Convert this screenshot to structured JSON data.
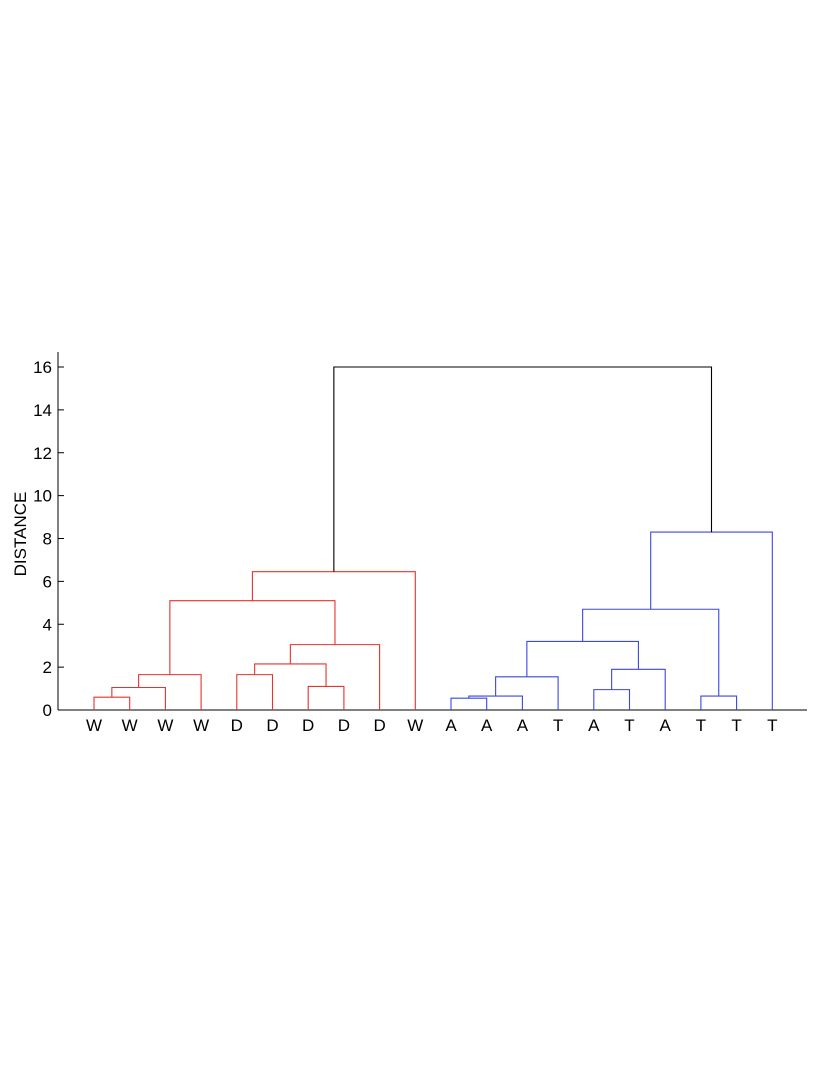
{
  "chart_data": {
    "type": "dendrogram",
    "title": "",
    "xlabel": "",
    "ylabel": "DISTANCE",
    "ylim": [
      0,
      16.8
    ],
    "yticks": [
      0,
      2,
      4,
      6,
      8,
      10,
      12,
      14,
      16
    ],
    "grid": false,
    "leaves": [
      "W",
      "W",
      "W",
      "W",
      "D",
      "D",
      "D",
      "D",
      "D",
      "W",
      "A",
      "A",
      "A",
      "T",
      "A",
      "T",
      "A",
      "T",
      "T",
      "T"
    ],
    "colors": {
      "cluster_1": "#e8322c",
      "cluster_2": "#3b46e3",
      "root": "#000000"
    },
    "merges": [
      {
        "left": 1,
        "right": 2,
        "height": 0.6,
        "cluster": "cluster_1"
      },
      {
        "left": 1.5,
        "right": 3,
        "height": 1.05,
        "cluster": "cluster_1"
      },
      {
        "left": 2.25,
        "right": 4,
        "height": 1.65,
        "cluster": "cluster_1"
      },
      {
        "left": 5,
        "right": 6,
        "height": 1.65,
        "cluster": "cluster_1"
      },
      {
        "left": 7,
        "right": 8,
        "height": 1.1,
        "cluster": "cluster_1"
      },
      {
        "left": 5.5,
        "right": 7.5,
        "height": 2.15,
        "cluster": "cluster_1"
      },
      {
        "left": 6.5,
        "right": 9,
        "height": 3.05,
        "cluster": "cluster_1"
      },
      {
        "left": 3.125,
        "right": 7.75,
        "height": 5.1,
        "cluster": "cluster_1"
      },
      {
        "left": 5.4375,
        "right": 10,
        "height": 6.45,
        "cluster": "cluster_1"
      },
      {
        "left": 11,
        "right": 12,
        "height": 0.55,
        "cluster": "cluster_2"
      },
      {
        "left": 11.5,
        "right": 13,
        "height": 0.65,
        "cluster": "cluster_2"
      },
      {
        "left": 12.25,
        "right": 14,
        "height": 1.55,
        "cluster": "cluster_2"
      },
      {
        "left": 15,
        "right": 16,
        "height": 0.95,
        "cluster": "cluster_2"
      },
      {
        "left": 15.5,
        "right": 17,
        "height": 1.9,
        "cluster": "cluster_2"
      },
      {
        "left": 13.125,
        "right": 16.25,
        "height": 3.2,
        "cluster": "cluster_2"
      },
      {
        "left": 18,
        "right": 19,
        "height": 0.65,
        "cluster": "cluster_2"
      },
      {
        "left": 14.6875,
        "right": 18.5,
        "height": 4.7,
        "cluster": "cluster_2"
      },
      {
        "left": 16.59375,
        "right": 20,
        "height": 8.3,
        "cluster": "cluster_2"
      },
      {
        "left": 7.71875,
        "right": 18.296875,
        "height": 16,
        "cluster": "root"
      }
    ]
  }
}
